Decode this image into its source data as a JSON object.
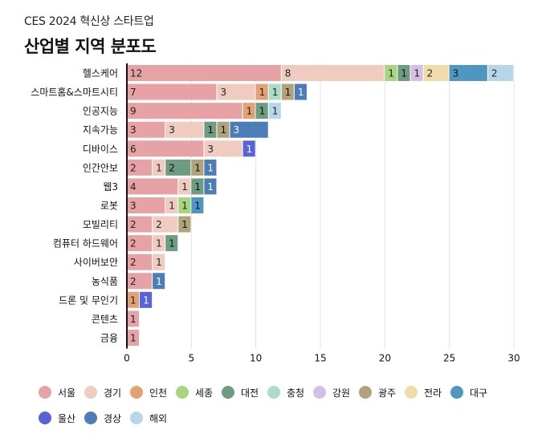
{
  "header": {
    "subtitle": "CES 2024 혁신상 스타트업",
    "title": "산업별 지역 분포도"
  },
  "chart_data": {
    "type": "bar",
    "orientation": "horizontal",
    "stacked": true,
    "title": "산업별 지역 분포도",
    "subtitle": "CES 2024 혁신상 스타트업",
    "xlabel": "",
    "ylabel": "",
    "xlim": [
      0,
      30
    ],
    "xticks": [
      0,
      5,
      10,
      15,
      20,
      25,
      30
    ],
    "grid": true,
    "legend_position": "bottom",
    "categories": [
      "헬스케어",
      "스마트홈&스마트시티",
      "인공지능",
      "지속가능",
      "디바이스",
      "인간안보",
      "웹3",
      "로봇",
      "모빌리티",
      "컴퓨터 하드웨어",
      "사이버보안",
      "농식품",
      "드론 및 무인기",
      "콘텐츠",
      "금융"
    ],
    "series": [
      {
        "name": "서울",
        "color": "#e6a2a5",
        "text": "#222",
        "values": [
          12,
          7,
          9,
          3,
          6,
          2,
          4,
          3,
          2,
          2,
          2,
          2,
          0,
          1,
          1
        ]
      },
      {
        "name": "경기",
        "color": "#f0cbbf",
        "text": "#222",
        "values": [
          8,
          3,
          0,
          3,
          3,
          1,
          1,
          1,
          2,
          1,
          1,
          0,
          0,
          0,
          0
        ]
      },
      {
        "name": "인천",
        "color": "#e2a274",
        "text": "#222",
        "values": [
          0,
          1,
          1,
          0,
          0,
          0,
          0,
          0,
          0,
          0,
          0,
          0,
          1,
          0,
          0
        ]
      },
      {
        "name": "세종",
        "color": "#a8d580",
        "text": "#222",
        "values": [
          1,
          0,
          0,
          0,
          0,
          0,
          0,
          1,
          0,
          0,
          0,
          0,
          0,
          0,
          0
        ]
      },
      {
        "name": "대전",
        "color": "#6e9c82",
        "text": "#111",
        "values": [
          1,
          0,
          1,
          1,
          0,
          2,
          1,
          0,
          0,
          1,
          0,
          0,
          0,
          0,
          0
        ]
      },
      {
        "name": "충청",
        "color": "#aadcc6",
        "text": "#222",
        "values": [
          0,
          1,
          0,
          0,
          0,
          0,
          0,
          0,
          0,
          0,
          0,
          0,
          0,
          0,
          0
        ]
      },
      {
        "name": "강원",
        "color": "#d5bfe6",
        "text": "#222",
        "values": [
          1,
          0,
          0,
          0,
          0,
          0,
          0,
          0,
          0,
          0,
          0,
          0,
          0,
          0,
          0
        ]
      },
      {
        "name": "광주",
        "color": "#b0a27a",
        "text": "#111",
        "values": [
          0,
          1,
          0,
          1,
          0,
          1,
          0,
          0,
          1,
          0,
          0,
          0,
          0,
          0,
          0
        ]
      },
      {
        "name": "전라",
        "color": "#f0dca8",
        "text": "#222",
        "values": [
          2,
          0,
          0,
          0,
          0,
          0,
          0,
          0,
          0,
          0,
          0,
          0,
          0,
          0,
          0
        ]
      },
      {
        "name": "대구",
        "color": "#4f97c1",
        "text": "#111",
        "values": [
          3,
          0,
          0,
          0,
          0,
          0,
          0,
          1,
          0,
          0,
          0,
          0,
          0,
          0,
          0
        ]
      },
      {
        "name": "울산",
        "color": "#5a62d8",
        "text": "#fff",
        "values": [
          0,
          0,
          0,
          0,
          1,
          0,
          0,
          0,
          0,
          0,
          0,
          0,
          1,
          0,
          0
        ]
      },
      {
        "name": "경상",
        "color": "#4d7db9",
        "text": "#fff",
        "values": [
          0,
          1,
          0,
          3,
          0,
          1,
          1,
          0,
          0,
          0,
          0,
          1,
          0,
          0,
          0
        ]
      },
      {
        "name": "해외",
        "color": "#b8d6ea",
        "text": "#222",
        "values": [
          2,
          0,
          1,
          0,
          0,
          0,
          0,
          0,
          0,
          0,
          0,
          0,
          0,
          0,
          0
        ]
      }
    ]
  }
}
